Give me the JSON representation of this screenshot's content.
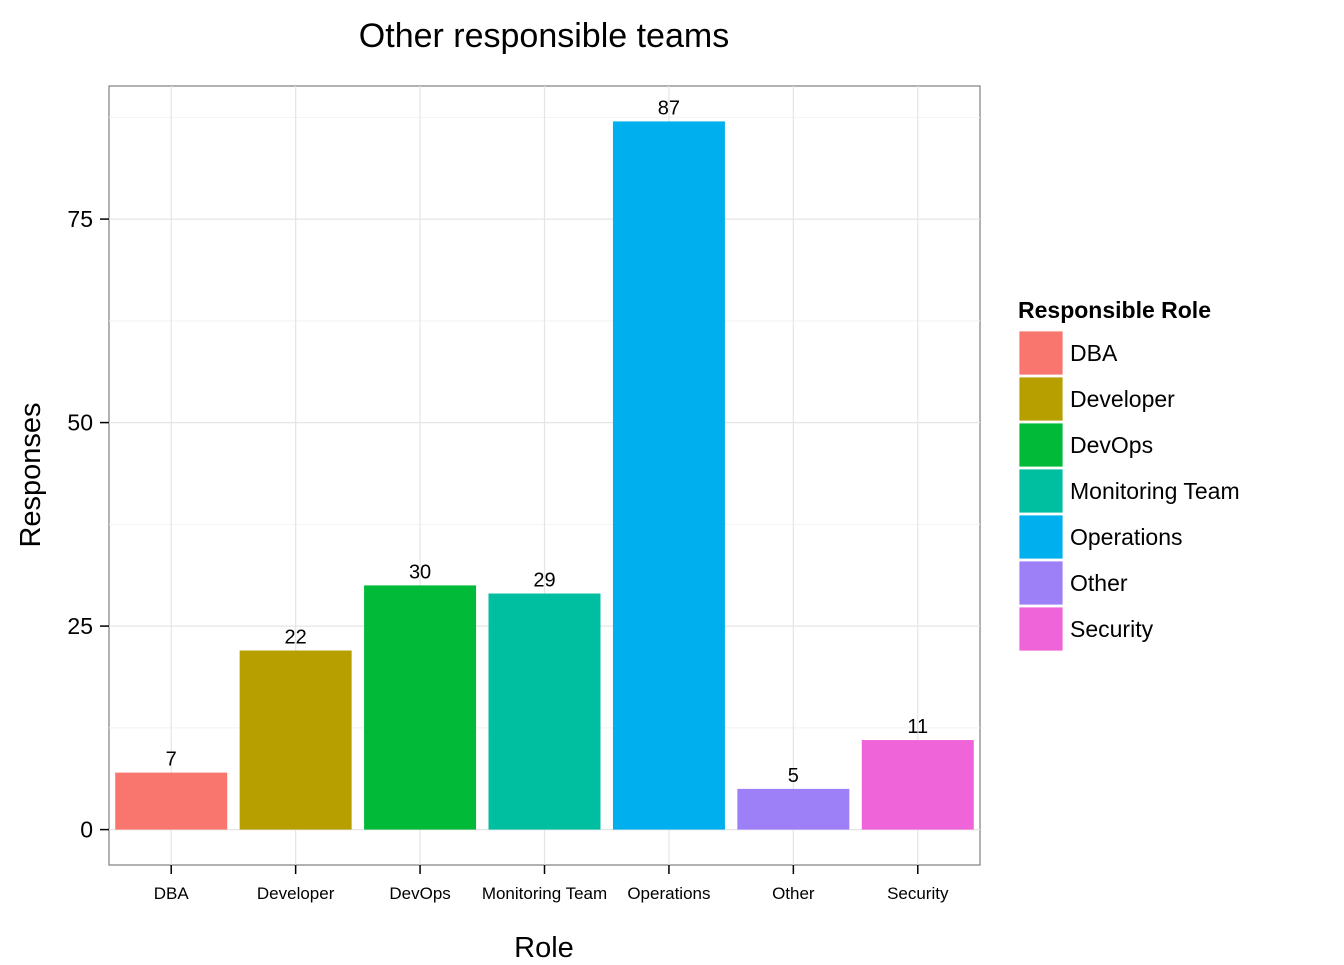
{
  "chart_data": {
    "type": "bar",
    "title": "Other responsible teams",
    "xlabel": "Role",
    "ylabel": "Responses",
    "categories": [
      "DBA",
      "Developer",
      "DevOps",
      "Monitoring Team",
      "Operations",
      "Other",
      "Security"
    ],
    "values": [
      7,
      22,
      30,
      29,
      87,
      5,
      11
    ],
    "colors": [
      "#F8766D",
      "#B79F00",
      "#00BA38",
      "#00BFA0",
      "#00AFEE",
      "#9D80F7",
      "#F064DA"
    ],
    "ylim": [
      -4.35,
      91.35
    ],
    "yticks": [
      0,
      25,
      50,
      75
    ],
    "grid": true,
    "legend": {
      "title": "Responsible Role",
      "position": "right",
      "entries": [
        "DBA",
        "Developer",
        "DevOps",
        "Monitoring Team",
        "Operations",
        "Other",
        "Security"
      ]
    }
  }
}
